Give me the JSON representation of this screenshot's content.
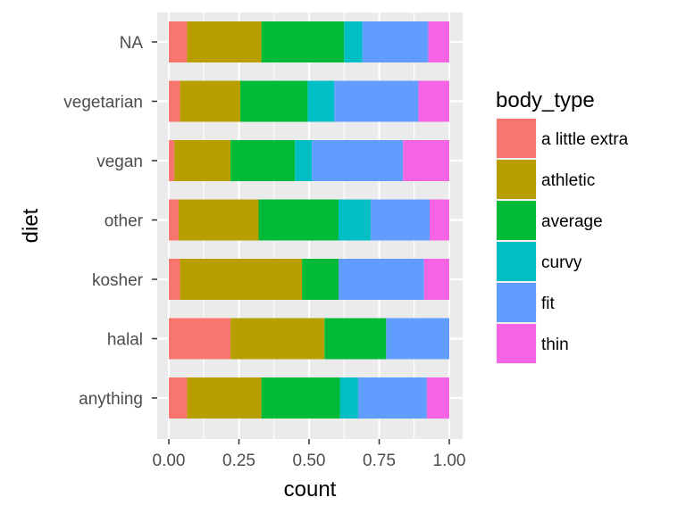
{
  "chart_data": {
    "type": "bar",
    "orientation": "horizontal",
    "stacked": "fill",
    "xlabel": "count",
    "ylabel": "diet",
    "xlim": [
      0,
      1
    ],
    "x_ticks": [
      "0.00",
      "0.25",
      "0.50",
      "0.75",
      "1.00"
    ],
    "categories": [
      "NA",
      "vegetarian",
      "vegan",
      "other",
      "kosher",
      "halal",
      "anything"
    ],
    "legend": {
      "title": "body_type",
      "position": "right"
    },
    "grid": true,
    "background": "#ebebeb",
    "series": [
      {
        "name": "a little extra",
        "color": "#F8766D",
        "values": [
          0.065,
          0.04,
          0.02,
          0.035,
          0.04,
          0.22,
          0.065
        ]
      },
      {
        "name": "athletic",
        "color": "#B79F00",
        "values": [
          0.265,
          0.215,
          0.2,
          0.285,
          0.435,
          0.335,
          0.265
        ]
      },
      {
        "name": "average",
        "color": "#00BA38",
        "values": [
          0.295,
          0.24,
          0.23,
          0.285,
          0.13,
          0.22,
          0.28
        ]
      },
      {
        "name": "curvy",
        "color": "#00BFC4",
        "values": [
          0.065,
          0.095,
          0.06,
          0.115,
          0.0,
          0.0,
          0.065
        ]
      },
      {
        "name": "fit",
        "color": "#619CFF",
        "values": [
          0.235,
          0.3,
          0.325,
          0.21,
          0.305,
          0.225,
          0.245
        ]
      },
      {
        "name": "thin",
        "color": "#F564E3",
        "values": [
          0.075,
          0.11,
          0.165,
          0.07,
          0.09,
          0.0,
          0.08
        ]
      }
    ]
  }
}
